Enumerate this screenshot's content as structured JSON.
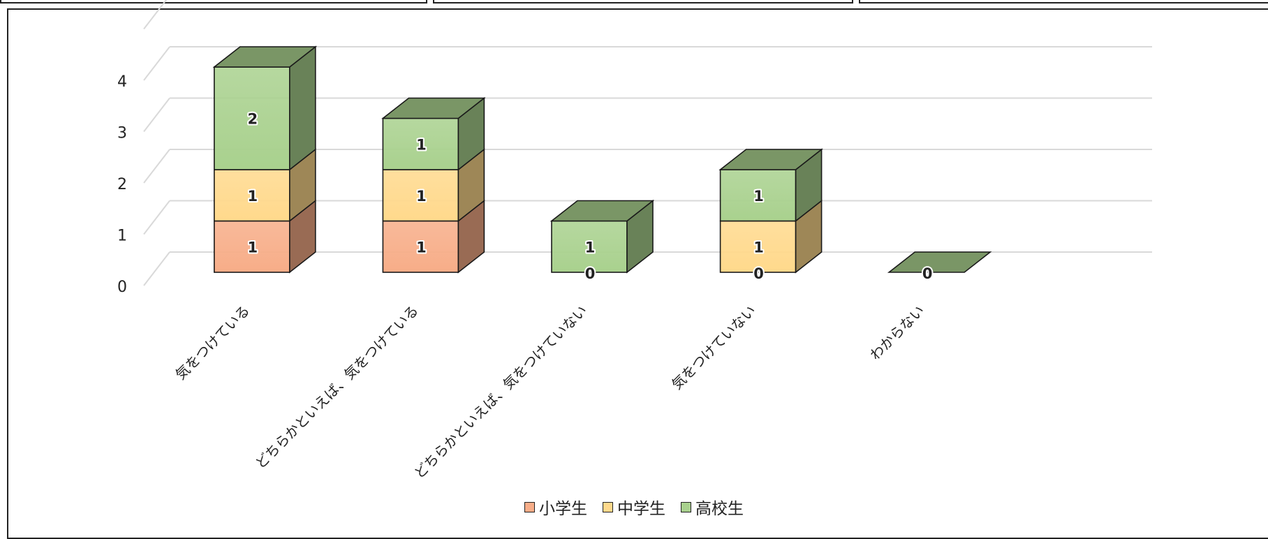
{
  "chart_data": {
    "type": "bar",
    "stacked": true,
    "three_d": true,
    "categories": [
      "気をつけている",
      "どちらかといえば、気をつけている",
      "どちらかといえば、気をつけていない",
      "気をつけていない",
      "わからない"
    ],
    "series": [
      {
        "name": "小学生",
        "values": [
          1,
          1,
          0,
          0,
          0
        ],
        "color": "#f7ad88"
      },
      {
        "name": "中学生",
        "values": [
          1,
          1,
          0,
          1,
          0
        ],
        "color": "#ffd98c"
      },
      {
        "name": "高校生",
        "values": [
          2,
          1,
          1,
          1,
          0
        ],
        "color": "#a9d18e"
      }
    ],
    "data_labels": [
      [
        "1",
        "1",
        "2"
      ],
      [
        "1",
        "1",
        "1"
      ],
      [
        "0",
        "1"
      ],
      [
        "0",
        "1",
        "1"
      ],
      [
        "0"
      ]
    ],
    "y_ticks": [
      "0",
      "1",
      "2",
      "3",
      "4"
    ],
    "ylim": [
      0,
      4
    ],
    "grid": true,
    "legend_position": "bottom"
  }
}
